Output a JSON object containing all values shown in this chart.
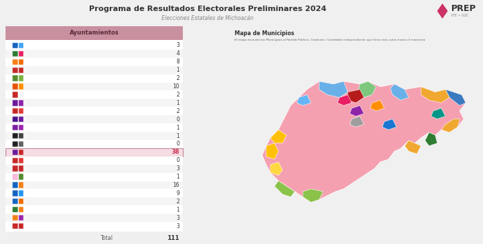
{
  "title": "Programa de Resultados Electorales Preliminares 2024",
  "subtitle": "Elecciones Estatales de Michoacán",
  "header_label": "Ayuntamientos",
  "header_bg": "#c9909f",
  "header_text_color": "#5a2a3a",
  "bg_color": "#f0f0f0",
  "rows": [
    {
      "value": 3
    },
    {
      "value": 4
    },
    {
      "value": 8
    },
    {
      "value": 1
    },
    {
      "value": 2
    },
    {
      "value": 10
    },
    {
      "value": 2
    },
    {
      "value": 1
    },
    {
      "value": 2
    },
    {
      "value": 0
    },
    {
      "value": 1
    },
    {
      "value": 1
    },
    {
      "value": 0
    },
    {
      "value": 38,
      "highlight": true
    },
    {
      "value": 0
    },
    {
      "value": 3
    },
    {
      "value": 1
    },
    {
      "value": 16
    },
    {
      "value": 9
    },
    {
      "value": 2
    },
    {
      "value": 1
    },
    {
      "value": 3
    },
    {
      "value": 3
    }
  ],
  "total": 111,
  "highlight_color": "#f5dde3",
  "highlight_border": "#c4899a",
  "map_title": "Mapa de Municipios",
  "map_subtitle": "El mapa muestra los Municipios al Partido Político, Coalición / Candidato independiente que lleva más votos hasta el momento",
  "row_alt_colors": [
    "#ffffff",
    "#f5f5f5"
  ],
  "value_color": "#333333",
  "value_highlight_color": "#cc3355"
}
